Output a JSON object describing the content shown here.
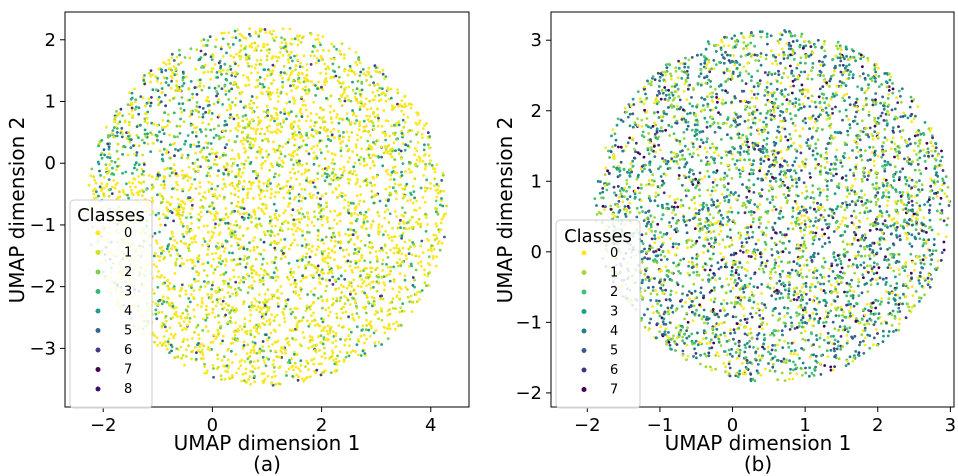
{
  "chart_data": [
    {
      "type": "scatter",
      "xlabel": "UMAP dimension 1",
      "ylabel": "UMAP dimension 2",
      "caption": "(a)",
      "xlim": [
        -2.7,
        4.7
      ],
      "ylim": [
        -3.95,
        2.45
      ],
      "xticks": [
        -2,
        0,
        2,
        4
      ],
      "yticks": [
        -3,
        -2,
        -1,
        0,
        1,
        2
      ],
      "legend": {
        "title": "Classes",
        "position": "lower-left"
      },
      "series": [
        {
          "name": "0",
          "color": "#fde725"
        },
        {
          "name": "1",
          "color": "#d2e21b"
        },
        {
          "name": "2",
          "color": "#7ad151"
        },
        {
          "name": "3",
          "color": "#35b779"
        },
        {
          "name": "4",
          "color": "#1f9e89"
        },
        {
          "name": "5",
          "color": "#31688e"
        },
        {
          "name": "6",
          "color": "#443983"
        },
        {
          "name": "7",
          "color": "#440154"
        },
        {
          "name": "8",
          "color": "#3b0f70"
        }
      ],
      "distribution": {
        "shape": "roughly circular point cloud",
        "center": [
          1.0,
          -0.7
        ],
        "radius_x": 3.3,
        "radius_y": 2.9,
        "dominant_class": "0",
        "notes": "classes 3-5 concentrated in upper-left region"
      }
    },
    {
      "type": "scatter",
      "xlabel": "UMAP dimension 1",
      "ylabel": "UMAP dimension 2",
      "caption": "(b)",
      "xlim": [
        -2.5,
        3.05
      ],
      "ylim": [
        -2.2,
        3.4
      ],
      "xticks": [
        -2,
        -1,
        0,
        1,
        2,
        3
      ],
      "yticks": [
        -2,
        -1,
        0,
        1,
        2,
        3
      ],
      "legend": {
        "title": "Classes",
        "position": "lower-left"
      },
      "series": [
        {
          "name": "0",
          "color": "#fde725"
        },
        {
          "name": "1",
          "color": "#a0da39"
        },
        {
          "name": "2",
          "color": "#4ac16d"
        },
        {
          "name": "3",
          "color": "#1fa187"
        },
        {
          "name": "4",
          "color": "#277f8e"
        },
        {
          "name": "5",
          "color": "#365c8d"
        },
        {
          "name": "6",
          "color": "#46327e"
        },
        {
          "name": "7",
          "color": "#440154"
        }
      ],
      "distribution": {
        "shape": "circular point cloud",
        "center": [
          0.55,
          0.65
        ],
        "radius_x": 2.45,
        "radius_y": 2.5,
        "dominant_class": "mixed",
        "notes": "classes evenly mixed"
      }
    }
  ]
}
